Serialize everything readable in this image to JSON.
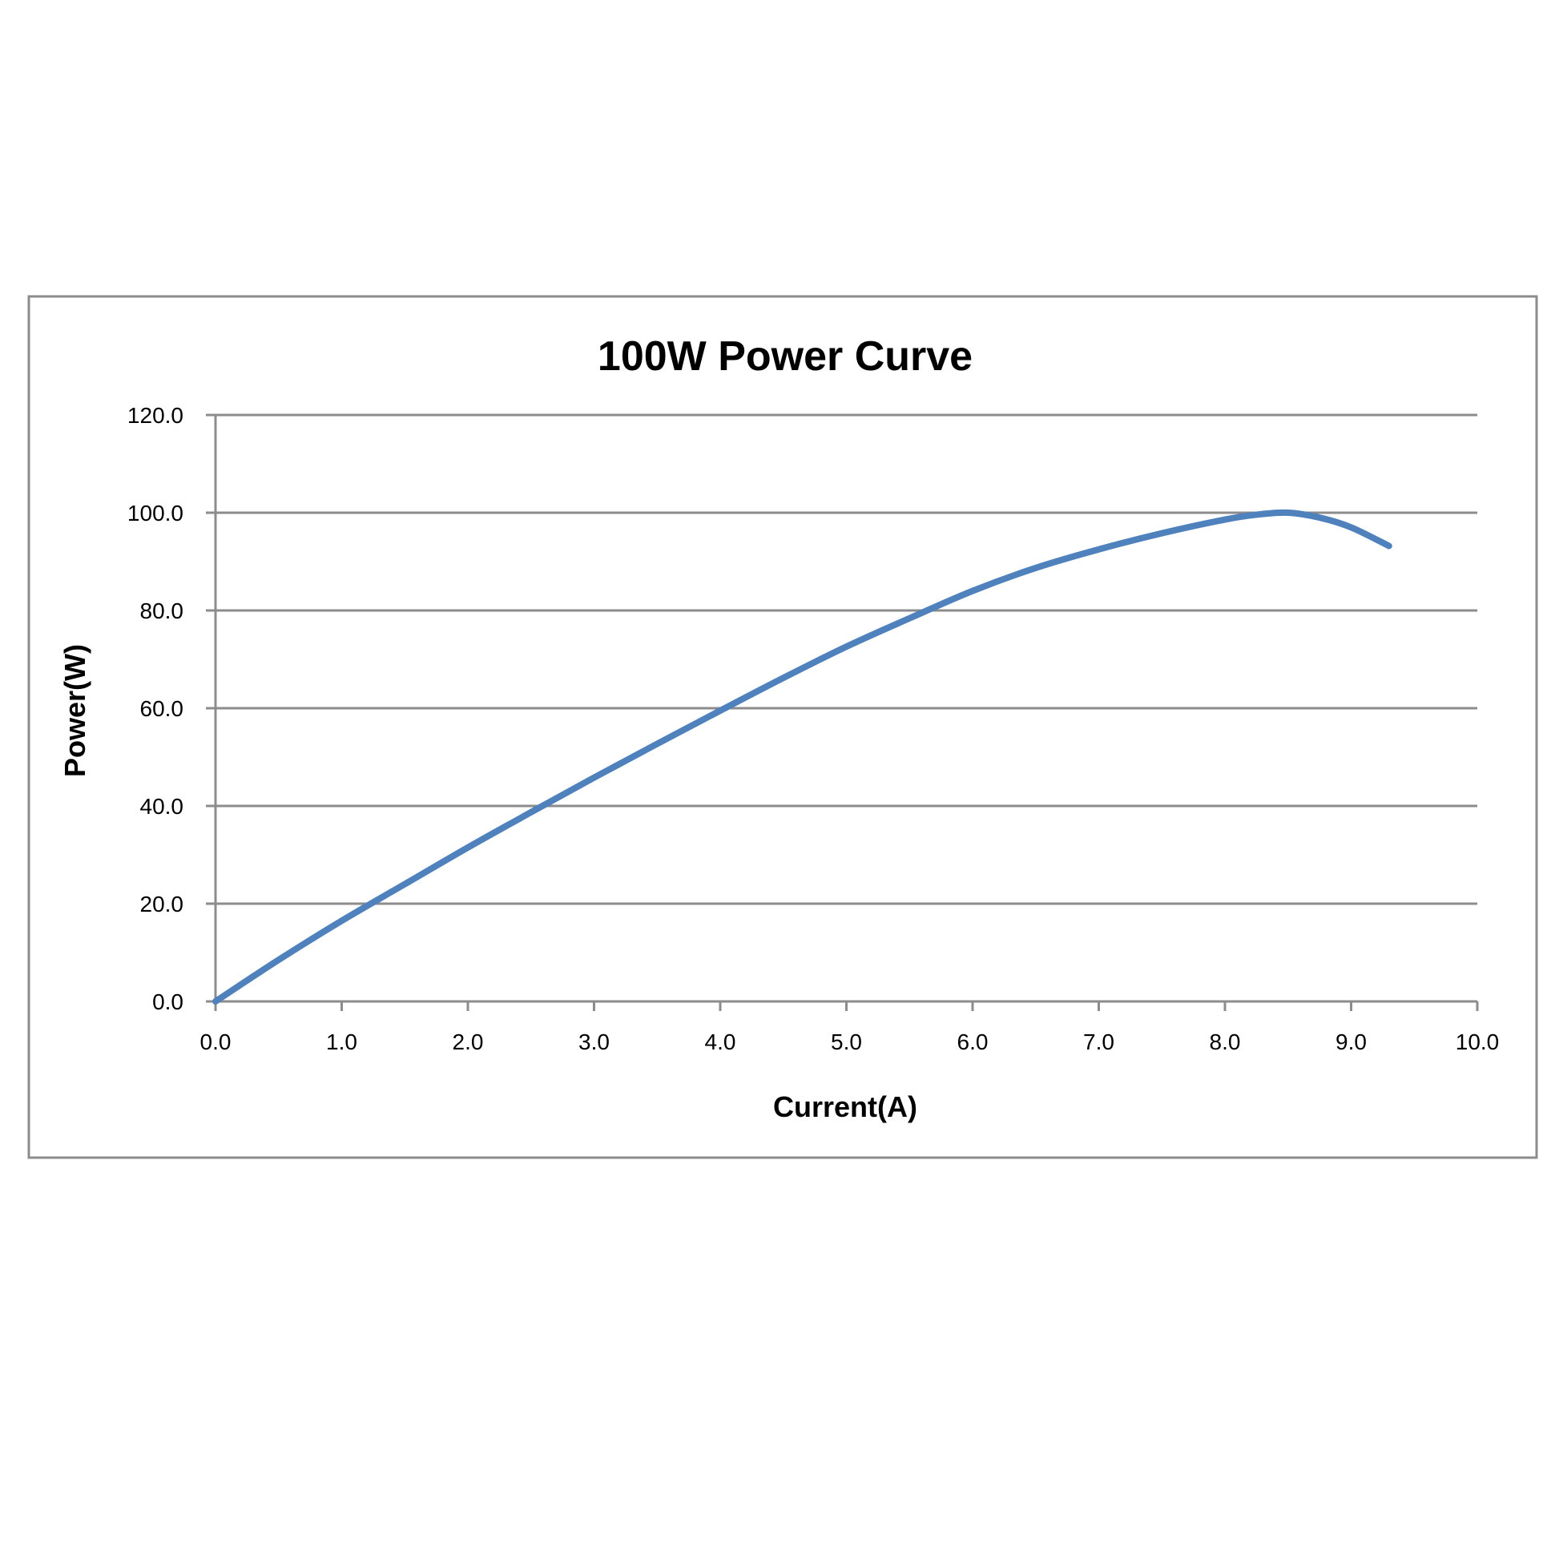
{
  "chart_data": {
    "type": "line",
    "title": "100W Power Curve",
    "xlabel": "Current(A)",
    "ylabel": "Power(W)",
    "xlim": [
      0,
      10
    ],
    "ylim": [
      0,
      120
    ],
    "x_ticks": [
      "0.0",
      "1.0",
      "2.0",
      "3.0",
      "4.0",
      "5.0",
      "6.0",
      "7.0",
      "8.0",
      "9.0",
      "10.0"
    ],
    "y_ticks": [
      "0.0",
      "20.0",
      "40.0",
      "60.0",
      "80.0",
      "100.0",
      "120.0"
    ],
    "grid": true,
    "legend": "none",
    "series": [
      {
        "color": "#4F81BD",
        "x": [
          0.0,
          0.5,
          1.0,
          1.5,
          2.0,
          2.5,
          3.0,
          3.5,
          4.0,
          4.5,
          5.0,
          5.5,
          6.0,
          6.5,
          7.0,
          7.5,
          8.0,
          8.25,
          8.5,
          8.75,
          9.0,
          9.3
        ],
        "y": [
          0.0,
          8.5,
          16.5,
          24.0,
          31.5,
          38.7,
          45.8,
          52.7,
          59.5,
          66.2,
          72.6,
          78.4,
          84.0,
          88.7,
          92.5,
          95.8,
          98.6,
          99.6,
          100.0,
          99.0,
          97.0,
          93.2
        ]
      }
    ]
  }
}
